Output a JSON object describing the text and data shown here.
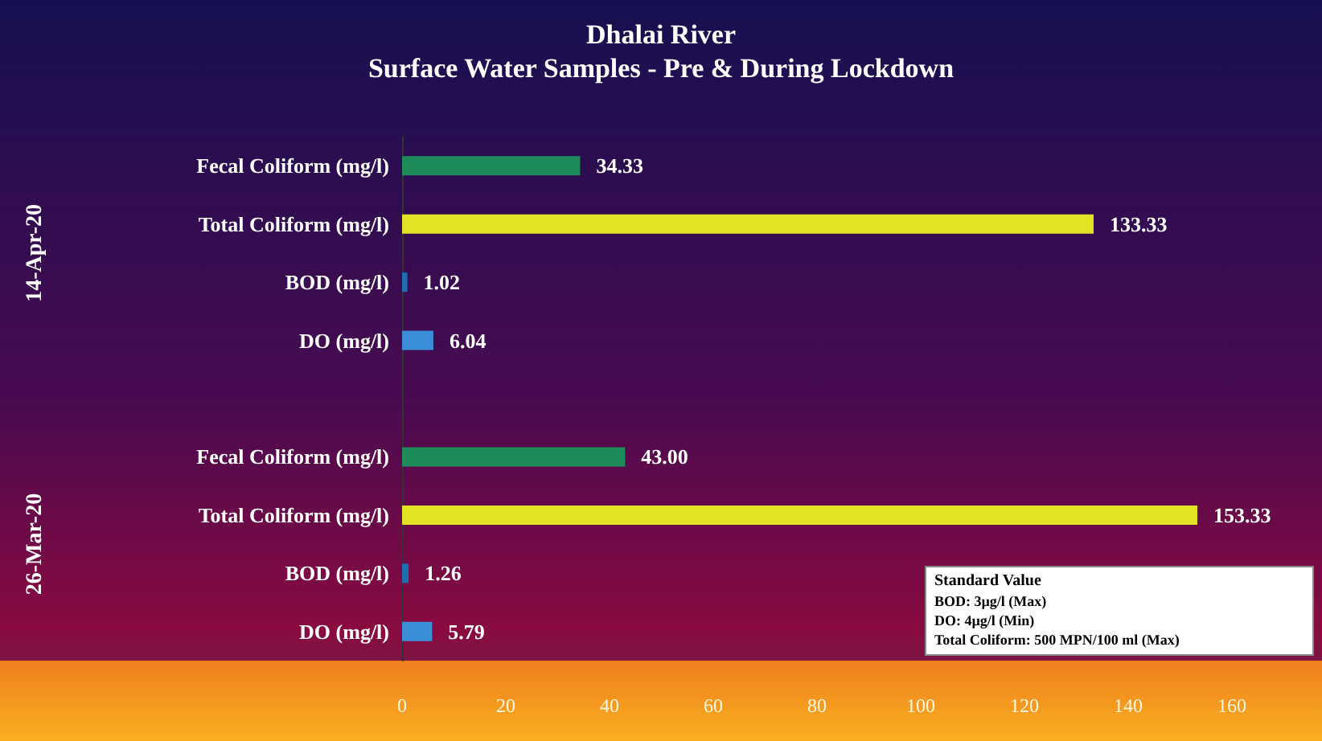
{
  "chart_data": {
    "type": "bar",
    "orientation": "horizontal",
    "title": "Dhalai River",
    "subtitle": "Surface Water Samples - Pre & During Lockdown",
    "categories": [
      "Fecal Coliform (mg/l)",
      "Total Coliform (mg/l)",
      "BOD (mg/l)",
      "DO (mg/l)",
      null,
      "Fecal Coliform (mg/l)",
      "Total Coliform (mg/l)",
      "BOD (mg/l)",
      "DO (mg/l)"
    ],
    "values": [
      34.33,
      133.33,
      1.02,
      6.04,
      null,
      43,
      153.33,
      1.26,
      5.79
    ],
    "value_labels": [
      "34.33",
      "133.33",
      "1.02",
      "6.04",
      null,
      "43.00",
      "153.33",
      "1.26",
      "5.79"
    ],
    "colors": [
      "#1f8a5a",
      "#e3e326",
      "#1e6fb0",
      "#3b8fd8",
      "#000000",
      "#1f8a5a",
      "#e3e326",
      "#1e6fb0",
      "#3b8fd8"
    ],
    "xlim": [
      0,
      160
    ],
    "xticks": [
      0,
      20,
      40,
      60,
      80,
      100,
      120,
      140,
      160
    ],
    "grid": false,
    "annotations": [
      "14-Apr-20",
      "26-Mar-20",
      "Standard Value",
      "BOD: 3µg/l (Max)",
      "DO: 4µg/l (Min)",
      "Total Coliform: 500 MPN/100 ml (Max)"
    ]
  }
}
